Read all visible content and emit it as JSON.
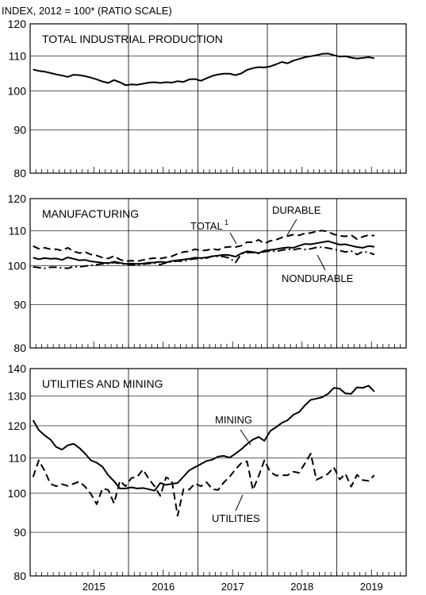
{
  "header": {
    "ylabel": "INDEX, 2012 = 100* (RATIO SCALE)"
  },
  "chart_data": [
    {
      "type": "line",
      "title": "TOTAL INDUSTRIAL PRODUCTION",
      "ylim": [
        80,
        120
      ],
      "yticks": [
        "80",
        "90",
        "100",
        "110",
        "120"
      ],
      "xlim": [
        2014.583,
        2020
      ],
      "series": [
        {
          "key": "total",
          "style": "solid",
          "x": [
            2014.625,
            2014.708,
            2014.792,
            2014.875,
            2014.958,
            2015.042,
            2015.125,
            2015.208,
            2015.292,
            2015.375,
            2015.458,
            2015.542,
            2015.625,
            2015.708,
            2015.792,
            2015.875,
            2015.958,
            2016.042,
            2016.125,
            2016.208,
            2016.292,
            2016.375,
            2016.458,
            2016.542,
            2016.625,
            2016.708,
            2016.792,
            2016.875,
            2016.958,
            2017.042,
            2017.125,
            2017.208,
            2017.292,
            2017.375,
            2017.458,
            2017.542,
            2017.625,
            2017.708,
            2017.792,
            2017.875,
            2017.958,
            2018.042,
            2018.125,
            2018.208,
            2018.292,
            2018.375,
            2018.458,
            2018.542,
            2018.625,
            2018.708,
            2018.792,
            2018.875,
            2018.958,
            2019.042,
            2019.125,
            2019.208,
            2019.292,
            2019.375,
            2019.458,
            2019.542
          ],
          "y": [
            106.0,
            105.6,
            105.4,
            105.0,
            104.6,
            104.3,
            103.9,
            104.5,
            104.4,
            104.1,
            103.7,
            103.2,
            102.6,
            102.2,
            103.0,
            102.4,
            101.6,
            101.8,
            101.7,
            102.0,
            102.3,
            102.4,
            102.2,
            102.4,
            102.3,
            102.7,
            102.5,
            103.2,
            103.3,
            102.8,
            103.5,
            104.2,
            104.6,
            104.8,
            104.8,
            104.4,
            104.9,
            105.9,
            106.4,
            106.7,
            106.6,
            106.9,
            107.5,
            108.2,
            107.8,
            108.6,
            109.1,
            109.6,
            109.9,
            110.2,
            110.6,
            110.7,
            110.2,
            109.8,
            109.9,
            109.5,
            109.2,
            109.4,
            109.6,
            109.3
          ]
        }
      ]
    },
    {
      "type": "line",
      "title": "MANUFACTURING",
      "ylim": [
        80,
        120
      ],
      "yticks": [
        "80",
        "90",
        "100",
        "110",
        "120"
      ],
      "xlim": [
        2014.583,
        2020
      ],
      "labels": {
        "total": "TOTAL",
        "total_sup": "1",
        "durable": "DURABLE",
        "nondurable": "NONDURABLE"
      },
      "series": [
        {
          "key": "total",
          "style": "solid",
          "x": [
            2014.625,
            2014.708,
            2014.792,
            2014.875,
            2014.958,
            2015.042,
            2015.125,
            2015.208,
            2015.292,
            2015.375,
            2015.458,
            2015.542,
            2015.625,
            2015.708,
            2015.792,
            2015.875,
            2015.958,
            2016.042,
            2016.125,
            2016.208,
            2016.292,
            2016.375,
            2016.458,
            2016.542,
            2016.625,
            2016.708,
            2016.792,
            2016.875,
            2016.958,
            2017.042,
            2017.125,
            2017.208,
            2017.292,
            2017.375,
            2017.458,
            2017.542,
            2017.625,
            2017.708,
            2017.792,
            2017.875,
            2017.958,
            2018.042,
            2018.125,
            2018.208,
            2018.292,
            2018.375,
            2018.458,
            2018.542,
            2018.625,
            2018.708,
            2018.792,
            2018.875,
            2018.958,
            2019.042,
            2019.125,
            2019.208,
            2019.292,
            2019.375,
            2019.458,
            2019.542
          ],
          "y": [
            102.2,
            101.8,
            102.1,
            101.9,
            102.0,
            101.6,
            102.3,
            101.9,
            101.5,
            101.6,
            101.2,
            101.0,
            100.8,
            100.7,
            101.1,
            100.8,
            100.5,
            100.6,
            100.5,
            100.6,
            100.8,
            100.9,
            101.1,
            100.9,
            101.3,
            101.5,
            101.7,
            101.9,
            102.2,
            102.1,
            102.3,
            102.6,
            102.8,
            103.0,
            102.9,
            102.5,
            103.4,
            104.0,
            103.8,
            103.5,
            104.2,
            104.4,
            104.6,
            104.9,
            105.1,
            105.0,
            105.6,
            106.1,
            106.0,
            106.3,
            106.6,
            106.9,
            106.4,
            105.9,
            106.0,
            105.6,
            105.2,
            105.0,
            105.5,
            105.3
          ]
        },
        {
          "key": "durable",
          "style": "dashed",
          "x": [
            2014.625,
            2014.708,
            2014.792,
            2014.875,
            2014.958,
            2015.042,
            2015.125,
            2015.208,
            2015.292,
            2015.375,
            2015.458,
            2015.542,
            2015.625,
            2015.708,
            2015.792,
            2015.875,
            2015.958,
            2016.042,
            2016.125,
            2016.208,
            2016.292,
            2016.375,
            2016.458,
            2016.542,
            2016.625,
            2016.708,
            2016.792,
            2016.875,
            2016.958,
            2017.042,
            2017.125,
            2017.208,
            2017.292,
            2017.375,
            2017.458,
            2017.542,
            2017.625,
            2017.708,
            2017.792,
            2017.875,
            2017.958,
            2018.042,
            2018.125,
            2018.208,
            2018.292,
            2018.375,
            2018.458,
            2018.542,
            2018.625,
            2018.708,
            2018.792,
            2018.875,
            2018.958,
            2019.042,
            2019.125,
            2019.208,
            2019.292,
            2019.375,
            2019.458,
            2019.542
          ],
          "y": [
            105.5,
            104.7,
            105.0,
            104.6,
            104.6,
            104.2,
            105.0,
            104.0,
            103.5,
            103.8,
            103.1,
            102.8,
            102.2,
            102.0,
            102.7,
            101.7,
            101.2,
            101.4,
            101.2,
            101.6,
            101.9,
            102.1,
            102.0,
            102.3,
            102.6,
            103.3,
            103.8,
            104.0,
            104.6,
            104.2,
            104.3,
            104.7,
            104.4,
            105.1,
            105.3,
            105.2,
            105.6,
            106.6,
            106.6,
            107.3,
            106.2,
            107.0,
            107.3,
            108.0,
            108.4,
            108.8,
            108.6,
            109.2,
            109.3,
            109.8,
            110.0,
            109.7,
            108.9,
            108.5,
            108.3,
            108.7,
            107.5,
            108.2,
            108.7,
            108.5
          ]
        },
        {
          "key": "nondurable",
          "style": "dashdot",
          "x": [
            2014.625,
            2014.708,
            2014.792,
            2014.875,
            2014.958,
            2015.042,
            2015.125,
            2015.208,
            2015.292,
            2015.375,
            2015.458,
            2015.542,
            2015.625,
            2015.708,
            2015.792,
            2015.875,
            2015.958,
            2016.042,
            2016.125,
            2016.208,
            2016.292,
            2016.375,
            2016.458,
            2016.542,
            2016.625,
            2016.708,
            2016.792,
            2016.875,
            2016.958,
            2017.042,
            2017.125,
            2017.208,
            2017.292,
            2017.375,
            2017.458,
            2017.542,
            2017.625,
            2017.708,
            2017.792,
            2017.875,
            2017.958,
            2018.042,
            2018.125,
            2018.208,
            2018.292,
            2018.375,
            2018.458,
            2018.542,
            2018.625,
            2018.708,
            2018.792,
            2018.875,
            2018.958,
            2019.042,
            2019.125,
            2019.208,
            2019.292,
            2019.375,
            2019.458,
            2019.542
          ],
          "y": [
            99.7,
            99.5,
            99.3,
            99.6,
            99.6,
            99.4,
            99.3,
            99.8,
            99.7,
            99.9,
            100.1,
            100.3,
            100.5,
            100.6,
            100.9,
            100.6,
            100.4,
            100.3,
            100.2,
            100.4,
            100.6,
            100.7,
            100.3,
            100.8,
            101.1,
            101.3,
            101.2,
            101.7,
            101.9,
            102.0,
            102.1,
            102.6,
            102.6,
            102.5,
            102.1,
            100.9,
            103.3,
            103.6,
            103.7,
            103.4,
            103.9,
            104.1,
            104.0,
            104.3,
            104.6,
            104.4,
            104.8,
            104.5,
            104.7,
            105.1,
            105.2,
            104.9,
            104.6,
            104.2,
            103.8,
            104.1,
            103.1,
            103.9,
            103.7,
            103.1
          ]
        }
      ]
    },
    {
      "type": "line",
      "title": "UTILITIES AND MINING",
      "ylim": [
        80,
        140
      ],
      "yticks": [
        "80",
        "90",
        "100",
        "110",
        "120",
        "130",
        "140"
      ],
      "xlim": [
        2014.583,
        2020
      ],
      "xticks": [
        "2015",
        "2016",
        "2017",
        "2018",
        "2019"
      ],
      "labels": {
        "mining": "MINING",
        "utilities": "UTILITIES"
      },
      "series": [
        {
          "key": "mining",
          "style": "solid",
          "x": [
            2014.625,
            2014.708,
            2014.792,
            2014.875,
            2014.958,
            2015.042,
            2015.125,
            2015.208,
            2015.292,
            2015.375,
            2015.458,
            2015.542,
            2015.625,
            2015.708,
            2015.792,
            2015.875,
            2015.958,
            2016.042,
            2016.125,
            2016.208,
            2016.292,
            2016.375,
            2016.458,
            2016.542,
            2016.625,
            2016.708,
            2016.792,
            2016.875,
            2016.958,
            2017.042,
            2017.125,
            2017.208,
            2017.292,
            2017.375,
            2017.458,
            2017.542,
            2017.625,
            2017.708,
            2017.792,
            2017.875,
            2017.958,
            2018.042,
            2018.125,
            2018.208,
            2018.292,
            2018.375,
            2018.458,
            2018.542,
            2018.625,
            2018.708,
            2018.792,
            2018.875,
            2018.958,
            2019.042,
            2019.125,
            2019.208,
            2019.292,
            2019.375,
            2019.458,
            2019.542
          ],
          "y": [
            121.8,
            118.6,
            116.9,
            115.6,
            113.3,
            112.5,
            113.8,
            114.3,
            113.0,
            111.3,
            109.3,
            108.6,
            107.4,
            105.0,
            103.3,
            101.3,
            101.3,
            101.6,
            101.3,
            101.4,
            101.1,
            100.7,
            102.8,
            102.3,
            102.6,
            102.8,
            104.6,
            106.4,
            107.3,
            108.2,
            109.1,
            109.5,
            110.4,
            110.6,
            110.1,
            111.3,
            112.6,
            114.2,
            115.6,
            116.4,
            115.2,
            118.3,
            119.5,
            120.9,
            121.8,
            123.6,
            124.5,
            126.8,
            128.7,
            129.1,
            129.6,
            130.8,
            132.9,
            132.6,
            130.9,
            130.8,
            133.1,
            132.9,
            133.7,
            131.6
          ]
        },
        {
          "key": "utilities",
          "style": "dashed",
          "x": [
            2014.625,
            2014.708,
            2014.792,
            2014.875,
            2014.958,
            2015.042,
            2015.125,
            2015.208,
            2015.292,
            2015.375,
            2015.458,
            2015.542,
            2015.625,
            2015.708,
            2015.792,
            2015.875,
            2015.958,
            2016.042,
            2016.125,
            2016.208,
            2016.292,
            2016.375,
            2016.458,
            2016.542,
            2016.625,
            2016.708,
            2016.792,
            2016.875,
            2016.958,
            2017.042,
            2017.125,
            2017.208,
            2017.292,
            2017.375,
            2017.458,
            2017.542,
            2017.625,
            2017.708,
            2017.792,
            2017.875,
            2017.958,
            2018.042,
            2018.125,
            2018.208,
            2018.292,
            2018.375,
            2018.458,
            2018.542,
            2018.625,
            2018.708,
            2018.792,
            2018.875,
            2018.958,
            2019.042,
            2019.125,
            2019.208,
            2019.292,
            2019.375,
            2019.458,
            2019.542
          ],
          "y": [
            104.5,
            109.3,
            106.2,
            102.6,
            101.9,
            102.5,
            102.0,
            102.6,
            103.2,
            101.8,
            99.8,
            97.1,
            101.3,
            100.9,
            97.3,
            103.4,
            101.9,
            104.2,
            104.5,
            106.6,
            104.0,
            101.9,
            99.3,
            104.4,
            103.4,
            94.1,
            101.1,
            101.0,
            102.7,
            101.9,
            103.0,
            101.1,
            100.9,
            103.0,
            104.6,
            106.7,
            108.5,
            109.0,
            100.9,
            104.8,
            109.3,
            105.9,
            104.9,
            105.0,
            105.0,
            106.0,
            105.7,
            108.4,
            111.3,
            103.7,
            104.5,
            105.4,
            107.3,
            103.8,
            105.4,
            101.8,
            105.1,
            103.6,
            103.4,
            105.0
          ]
        }
      ]
    }
  ]
}
